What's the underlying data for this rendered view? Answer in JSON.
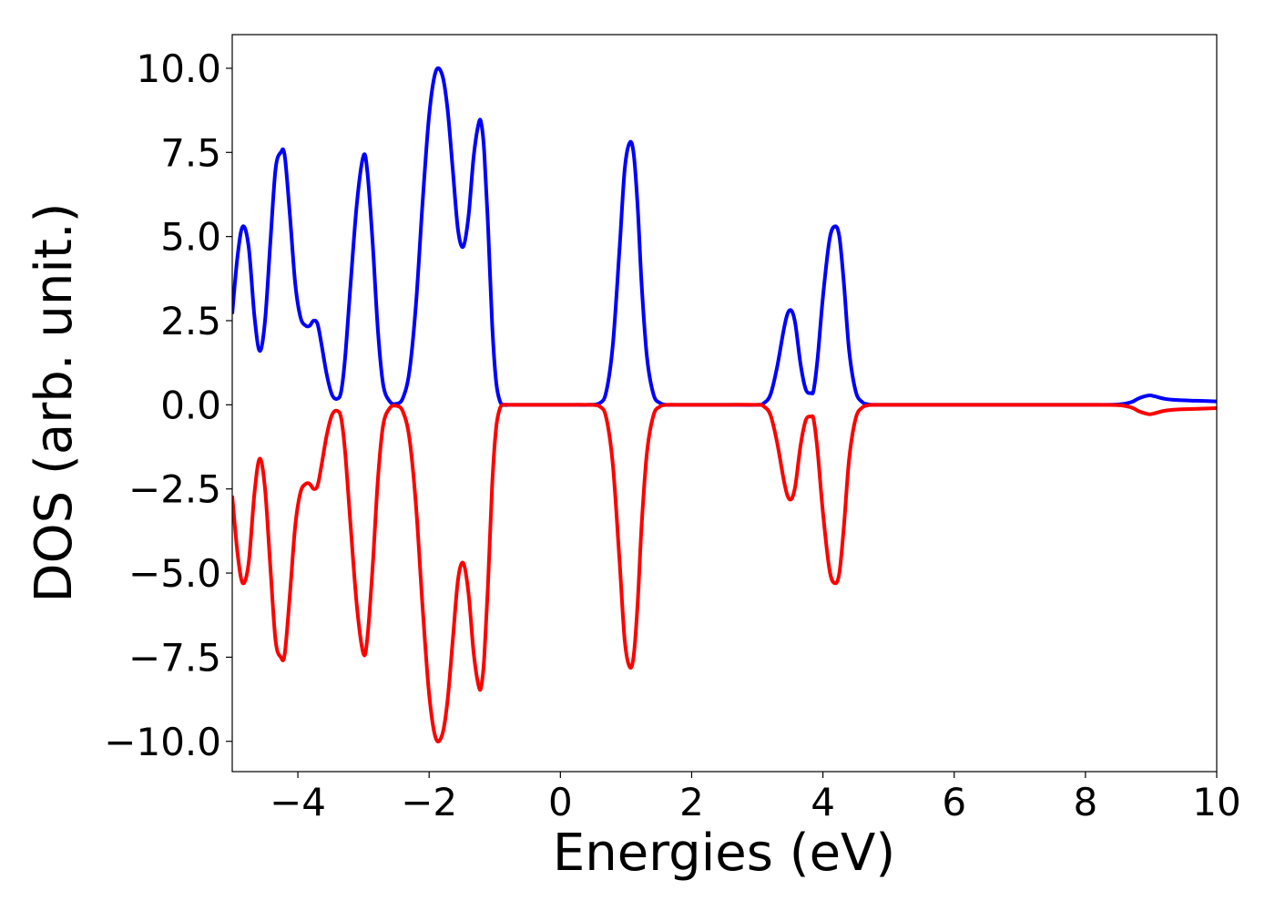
{
  "chart_data": {
    "type": "line",
    "title": "",
    "xlabel": "Energies (eV)",
    "ylabel": "DOS (arb. unit.)",
    "xlim": [
      -5,
      10
    ],
    "ylim": [
      -10.9,
      11.0
    ],
    "grid": false,
    "legend": "none",
    "x_ticks": [
      {
        "value": -4,
        "label": "−4"
      },
      {
        "value": -2,
        "label": "−2"
      },
      {
        "value": 0,
        "label": "0"
      },
      {
        "value": 2,
        "label": "2"
      },
      {
        "value": 4,
        "label": "4"
      },
      {
        "value": 6,
        "label": "6"
      },
      {
        "value": 8,
        "label": "8"
      },
      {
        "value": 10,
        "label": "10"
      }
    ],
    "y_ticks": [
      {
        "value": 10,
        "label": "10.0"
      },
      {
        "value": 7.5,
        "label": "7.5"
      },
      {
        "value": 5,
        "label": "5.0"
      },
      {
        "value": 2.5,
        "label": "2.5"
      },
      {
        "value": 0,
        "label": "0.0"
      },
      {
        "value": -2.5,
        "label": "−2.5"
      },
      {
        "value": -5,
        "label": "−5.0"
      },
      {
        "value": -7.5,
        "label": "−7.5"
      },
      {
        "value": -10,
        "label": "−10.0"
      }
    ],
    "series": [
      {
        "color": "#0000ff",
        "x": [
          -5.0,
          -4.92,
          -4.84,
          -4.75,
          -4.66,
          -4.58,
          -4.5,
          -4.42,
          -4.34,
          -4.26,
          -4.2,
          -4.12,
          -4.04,
          -3.96,
          -3.88,
          -3.82,
          -3.76,
          -3.7,
          -3.64,
          -3.56,
          -3.48,
          -3.4,
          -3.34,
          -3.28,
          -3.2,
          -3.1,
          -3.0,
          -2.94,
          -2.86,
          -2.78,
          -2.7,
          -2.6,
          -2.5,
          -2.4,
          -2.3,
          -2.2,
          -2.1,
          -2.0,
          -1.9,
          -1.8,
          -1.72,
          -1.64,
          -1.56,
          -1.48,
          -1.4,
          -1.32,
          -1.24,
          -1.2,
          -1.16,
          -1.1,
          -1.04,
          -0.98,
          -0.92,
          -0.86,
          -0.78,
          -0.7,
          -0.6,
          -0.5,
          -0.4,
          -0.2,
          0.0,
          0.2,
          0.4,
          0.6,
          0.7,
          0.8,
          0.9,
          0.98,
          1.06,
          1.12,
          1.18,
          1.24,
          1.32,
          1.42,
          1.52,
          1.62,
          1.75,
          2.0,
          2.5,
          3.0,
          3.1,
          3.2,
          3.3,
          3.4,
          3.46,
          3.52,
          3.58,
          3.66,
          3.74,
          3.82,
          3.86,
          3.92,
          4.0,
          4.1,
          4.18,
          4.25,
          4.32,
          4.4,
          4.5,
          4.6,
          4.7,
          4.8,
          5.0,
          6.0,
          7.0,
          8.0,
          8.5,
          8.7,
          8.8,
          8.9,
          8.98,
          9.06,
          9.2,
          9.4,
          9.7,
          10.0
        ],
        "y": [
          2.7,
          4.4,
          5.3,
          4.7,
          2.6,
          1.6,
          2.5,
          4.8,
          7.0,
          7.5,
          7.4,
          5.6,
          3.6,
          2.6,
          2.35,
          2.35,
          2.5,
          2.4,
          1.8,
          0.9,
          0.3,
          0.18,
          0.4,
          1.4,
          3.5,
          6.0,
          7.4,
          6.9,
          4.8,
          2.2,
          0.6,
          0.1,
          0.03,
          0.2,
          1.0,
          3.0,
          6.0,
          8.6,
          9.9,
          9.8,
          8.8,
          7.0,
          5.2,
          4.7,
          5.6,
          7.4,
          8.4,
          8.3,
          7.5,
          5.2,
          2.4,
          0.7,
          0.1,
          0.0,
          0.0,
          0.0,
          0.0,
          0.0,
          0.0,
          0.0,
          0.0,
          0.0,
          0.0,
          0.05,
          0.4,
          1.8,
          4.6,
          7.0,
          7.8,
          7.4,
          5.8,
          3.5,
          1.4,
          0.3,
          0.05,
          0.0,
          0.0,
          0.0,
          0.0,
          0.0,
          0.05,
          0.3,
          1.1,
          2.2,
          2.7,
          2.8,
          2.4,
          1.2,
          0.45,
          0.35,
          0.45,
          1.4,
          3.2,
          4.9,
          5.3,
          5.0,
          3.6,
          1.6,
          0.4,
          0.08,
          0.01,
          0.0,
          0.0,
          0.0,
          0.0,
          0.0,
          0.01,
          0.08,
          0.18,
          0.25,
          0.28,
          0.25,
          0.18,
          0.14,
          0.12,
          0.1
        ]
      },
      {
        "color": "#ff0000",
        "x": [
          -5.0,
          -4.92,
          -4.84,
          -4.75,
          -4.66,
          -4.58,
          -4.5,
          -4.42,
          -4.34,
          -4.26,
          -4.2,
          -4.12,
          -4.04,
          -3.96,
          -3.88,
          -3.82,
          -3.76,
          -3.7,
          -3.64,
          -3.56,
          -3.48,
          -3.4,
          -3.34,
          -3.28,
          -3.2,
          -3.1,
          -3.0,
          -2.94,
          -2.86,
          -2.78,
          -2.7,
          -2.6,
          -2.5,
          -2.4,
          -2.3,
          -2.2,
          -2.1,
          -2.0,
          -1.9,
          -1.8,
          -1.72,
          -1.64,
          -1.56,
          -1.48,
          -1.4,
          -1.32,
          -1.24,
          -1.2,
          -1.16,
          -1.1,
          -1.04,
          -0.98,
          -0.92,
          -0.86,
          -0.78,
          -0.7,
          -0.6,
          -0.5,
          -0.4,
          -0.2,
          0.0,
          0.2,
          0.4,
          0.6,
          0.7,
          0.8,
          0.9,
          0.98,
          1.06,
          1.12,
          1.18,
          1.24,
          1.32,
          1.42,
          1.52,
          1.62,
          1.75,
          2.0,
          2.5,
          3.0,
          3.1,
          3.2,
          3.3,
          3.4,
          3.46,
          3.52,
          3.58,
          3.66,
          3.74,
          3.82,
          3.86,
          3.92,
          4.0,
          4.1,
          4.18,
          4.25,
          4.32,
          4.4,
          4.5,
          4.6,
          4.7,
          4.8,
          5.0,
          6.0,
          7.0,
          8.0,
          8.5,
          8.7,
          8.8,
          8.9,
          8.98,
          9.06,
          9.2,
          9.4,
          9.7,
          10.0
        ],
        "y": [
          -2.7,
          -4.4,
          -5.3,
          -4.7,
          -2.6,
          -1.6,
          -2.5,
          -4.8,
          -7.0,
          -7.5,
          -7.4,
          -5.6,
          -3.6,
          -2.6,
          -2.35,
          -2.35,
          -2.5,
          -2.4,
          -1.8,
          -0.9,
          -0.3,
          -0.18,
          -0.4,
          -1.4,
          -3.5,
          -6.0,
          -7.4,
          -6.9,
          -4.8,
          -2.2,
          -0.6,
          -0.1,
          -0.03,
          -0.2,
          -1.0,
          -3.0,
          -6.0,
          -8.6,
          -9.9,
          -9.8,
          -8.8,
          -7.0,
          -5.2,
          -4.7,
          -5.6,
          -7.4,
          -8.4,
          -8.3,
          -7.5,
          -5.2,
          -2.4,
          -0.7,
          -0.1,
          0.0,
          0.0,
          0.0,
          0.0,
          0.0,
          0.0,
          0.0,
          0.0,
          0.0,
          0.0,
          -0.05,
          -0.4,
          -1.8,
          -4.6,
          -7.0,
          -7.8,
          -7.4,
          -5.8,
          -3.5,
          -1.4,
          -0.3,
          -0.05,
          0.0,
          0.0,
          0.0,
          0.0,
          0.0,
          -0.05,
          -0.3,
          -1.1,
          -2.2,
          -2.7,
          -2.8,
          -2.4,
          -1.2,
          -0.45,
          -0.35,
          -0.45,
          -1.4,
          -3.2,
          -4.9,
          -5.3,
          -5.0,
          -3.6,
          -1.6,
          -0.4,
          -0.08,
          -0.01,
          0.0,
          0.0,
          0.0,
          0.0,
          0.0,
          -0.01,
          -0.08,
          -0.18,
          -0.25,
          -0.28,
          -0.25,
          -0.18,
          -0.14,
          -0.12,
          -0.1
        ]
      }
    ]
  }
}
